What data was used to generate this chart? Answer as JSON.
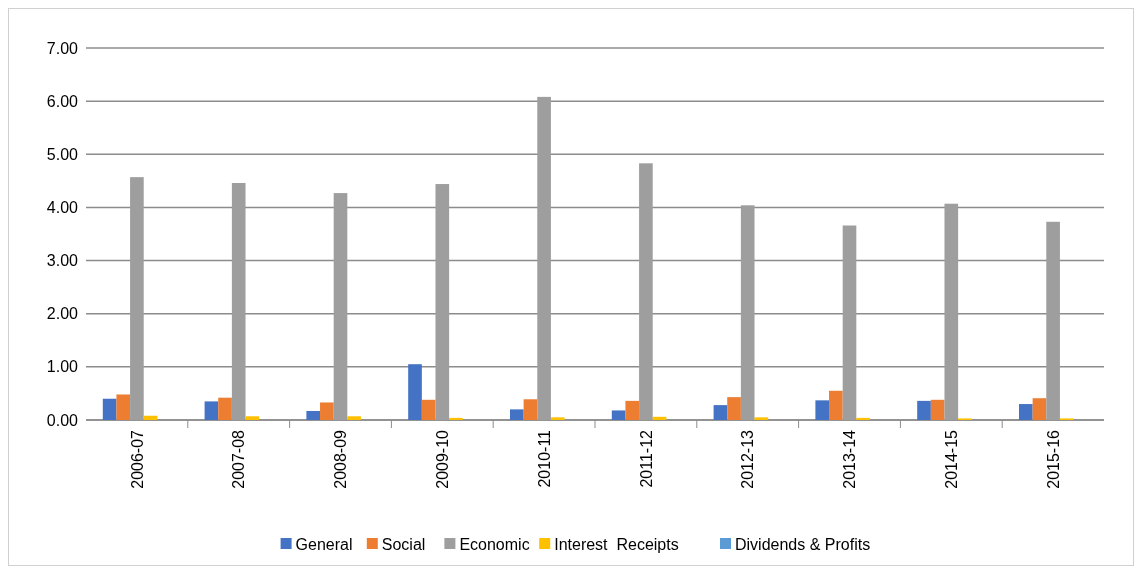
{
  "chart_data": {
    "type": "bar",
    "categories": [
      "2006-07",
      "2007-08",
      "2008-09",
      "2009-10",
      "2010-11",
      "2011-12",
      "2012-13",
      "2013-14",
      "2014-15",
      "2015-16"
    ],
    "series": [
      {
        "name": "General",
        "color": "#4472c4",
        "values": [
          0.4,
          0.35,
          0.17,
          1.05,
          0.2,
          0.18,
          0.28,
          0.37,
          0.36,
          0.3
        ]
      },
      {
        "name": "Social",
        "color": "#ed7d31",
        "values": [
          0.48,
          0.42,
          0.33,
          0.38,
          0.39,
          0.36,
          0.43,
          0.55,
          0.38,
          0.41
        ]
      },
      {
        "name": "Economic",
        "color": "#9e9e9e",
        "values": [
          4.57,
          4.46,
          4.27,
          4.44,
          6.08,
          4.83,
          4.04,
          3.66,
          4.07,
          3.73
        ]
      },
      {
        "name": "Interest  Receipts",
        "color": "#ffc000",
        "values": [
          0.08,
          0.07,
          0.07,
          0.04,
          0.05,
          0.06,
          0.05,
          0.04,
          0.03,
          0.03
        ]
      },
      {
        "name": "Dividends & Profits",
        "color": "#5b9bd5",
        "values": [
          0,
          0,
          0,
          0,
          0,
          0,
          0,
          0,
          0,
          0
        ]
      }
    ],
    "ylim": [
      0,
      7
    ],
    "yticks": [
      {
        "value": 0,
        "label": "0.00"
      },
      {
        "value": 1,
        "label": "1.00"
      },
      {
        "value": 2,
        "label": "2.00"
      },
      {
        "value": 3,
        "label": "3.00"
      },
      {
        "value": 4,
        "label": "4.00"
      },
      {
        "value": 5,
        "label": "5.00"
      },
      {
        "value": 6,
        "label": "6.00"
      },
      {
        "value": 7,
        "label": "7.00"
      }
    ],
    "grid": "y",
    "legend": "bottom"
  }
}
